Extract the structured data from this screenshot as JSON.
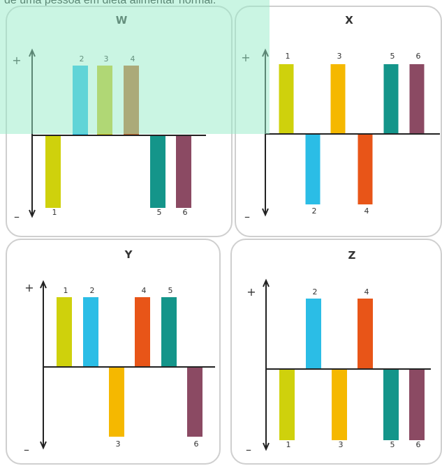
{
  "caption": "de uma pessoa em dieta alimentar normal.",
  "colors": {
    "1": "#cfd10c",
    "2": "#2bbde6",
    "3": "#f5b800",
    "4": "#e85518",
    "5": "#14958a",
    "6": "#8b4a63",
    "axis": "#222222",
    "highlight": "#96ebc8"
  },
  "chart_data": [
    {
      "type": "bar",
      "title": "W",
      "categories": [
        "1",
        "2",
        "3",
        "4",
        "5",
        "6"
      ],
      "values": [
        -1,
        1,
        1,
        1,
        -1,
        -1
      ],
      "bar_colors": [
        "#cfd10c",
        "#2bbde6",
        "#cbc323",
        "#c0692b",
        "#14958a",
        "#8b4a63"
      ],
      "positive_label": "+",
      "negative_label": "–",
      "ylim": [
        -1,
        1
      ]
    },
    {
      "type": "bar",
      "title": "X",
      "categories": [
        "1",
        "2",
        "3",
        "4",
        "5",
        "6"
      ],
      "values": [
        1,
        -1,
        1,
        -1,
        1,
        1
      ],
      "bar_colors": [
        "#cfd10c",
        "#2bbde6",
        "#f5b800",
        "#e85518",
        "#14958a",
        "#8b4a63"
      ],
      "positive_label": "+",
      "negative_label": "–",
      "ylim": [
        -1,
        1
      ]
    },
    {
      "type": "bar",
      "title": "Y",
      "categories": [
        "1",
        "2",
        "3",
        "4",
        "5",
        "6"
      ],
      "values": [
        1,
        1,
        -1,
        1,
        1,
        -1
      ],
      "bar_colors": [
        "#cfd10c",
        "#2bbde6",
        "#f5b800",
        "#e85518",
        "#14958a",
        "#8b4a63"
      ],
      "positive_label": "+",
      "negative_label": "–",
      "ylim": [
        -1,
        1
      ]
    },
    {
      "type": "bar",
      "title": "Z",
      "categories": [
        "1",
        "2",
        "3",
        "4",
        "5",
        "6"
      ],
      "values": [
        -1,
        1,
        -1,
        1,
        -1,
        -1
      ],
      "bar_colors": [
        "#cfd10c",
        "#2bbde6",
        "#f5b800",
        "#e85518",
        "#14958a",
        "#8b4a63"
      ],
      "positive_label": "+",
      "negative_label": "–",
      "ylim": [
        -1,
        1
      ]
    }
  ]
}
